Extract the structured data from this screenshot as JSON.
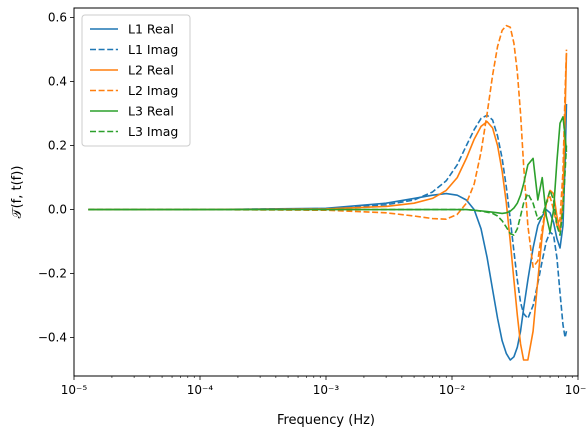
{
  "chart_data": {
    "type": "line",
    "title": "",
    "xlabel": "Frequency (Hz)",
    "ylabel": "𝒯(f, t(f))",
    "x_scale": "log",
    "xlim": [
      1e-05,
      0.1
    ],
    "ylim": [
      -0.52,
      0.63
    ],
    "grid": false,
    "legend_position": "top-left",
    "x_ticks": [
      {
        "value": 1e-05,
        "label": "10⁻⁵"
      },
      {
        "value": 0.0001,
        "label": "10⁻⁴"
      },
      {
        "value": 0.001,
        "label": "10⁻³"
      },
      {
        "value": 0.01,
        "label": "10⁻²"
      },
      {
        "value": 0.1,
        "label": "10⁻¹"
      }
    ],
    "y_ticks": [
      {
        "value": -0.4,
        "label": "−0.4"
      },
      {
        "value": -0.2,
        "label": "−0.2"
      },
      {
        "value": 0.0,
        "label": "0.0"
      },
      {
        "value": 0.2,
        "label": "0.2"
      },
      {
        "value": 0.4,
        "label": "0.4"
      },
      {
        "value": 0.6,
        "label": "0.6"
      }
    ],
    "series": [
      {
        "name": "L1 Real",
        "color": "#1f77b4",
        "dash": "solid",
        "x": [
          1.3e-05,
          0.0001,
          0.001,
          0.003,
          0.005,
          0.007,
          0.009,
          0.011,
          0.013,
          0.015,
          0.017,
          0.019,
          0.021,
          0.023,
          0.025,
          0.027,
          0.029,
          0.031,
          0.033,
          0.035,
          0.037,
          0.04,
          0.044,
          0.048,
          0.052,
          0.056,
          0.06,
          0.064,
          0.068,
          0.072,
          0.076,
          0.079,
          0.081
        ],
        "y": [
          0.0,
          0.0,
          0.004,
          0.02,
          0.035,
          0.045,
          0.05,
          0.045,
          0.03,
          0.0,
          -0.06,
          -0.15,
          -0.25,
          -0.34,
          -0.41,
          -0.45,
          -0.47,
          -0.46,
          -0.43,
          -0.38,
          -0.31,
          -0.22,
          -0.12,
          -0.05,
          -0.02,
          0.0,
          -0.01,
          -0.04,
          -0.09,
          -0.12,
          -0.05,
          0.15,
          0.33
        ]
      },
      {
        "name": "L1 Imag",
        "color": "#1f77b4",
        "dash": "dashed",
        "x": [
          1.3e-05,
          0.0001,
          0.001,
          0.003,
          0.005,
          0.007,
          0.009,
          0.011,
          0.013,
          0.015,
          0.017,
          0.019,
          0.021,
          0.023,
          0.025,
          0.027,
          0.029,
          0.031,
          0.033,
          0.035,
          0.037,
          0.04,
          0.044,
          0.048,
          0.052,
          0.056,
          0.06,
          0.064,
          0.068,
          0.072,
          0.076,
          0.079,
          0.081
        ],
        "y": [
          0.0,
          0.0,
          0.003,
          0.015,
          0.03,
          0.055,
          0.09,
          0.14,
          0.2,
          0.25,
          0.285,
          0.295,
          0.28,
          0.23,
          0.16,
          0.07,
          -0.03,
          -0.13,
          -0.22,
          -0.29,
          -0.325,
          -0.34,
          -0.3,
          -0.23,
          -0.16,
          -0.1,
          -0.07,
          -0.08,
          -0.15,
          -0.26,
          -0.36,
          -0.4,
          -0.38
        ]
      },
      {
        "name": "L2 Real",
        "color": "#ff7f0e",
        "dash": "solid",
        "x": [
          1.3e-05,
          0.0001,
          0.001,
          0.003,
          0.005,
          0.007,
          0.009,
          0.011,
          0.013,
          0.015,
          0.017,
          0.019,
          0.021,
          0.023,
          0.025,
          0.027,
          0.029,
          0.031,
          0.033,
          0.035,
          0.037,
          0.04,
          0.044,
          0.048,
          0.052,
          0.056,
          0.06,
          0.064,
          0.068,
          0.072,
          0.076,
          0.079,
          0.081
        ],
        "y": [
          0.0,
          0.0,
          0.002,
          0.01,
          0.02,
          0.035,
          0.06,
          0.1,
          0.16,
          0.22,
          0.26,
          0.275,
          0.255,
          0.2,
          0.12,
          0.02,
          -0.1,
          -0.22,
          -0.33,
          -0.42,
          -0.47,
          -0.47,
          -0.38,
          -0.22,
          -0.08,
          0.02,
          0.06,
          0.05,
          -0.02,
          -0.07,
          0.03,
          0.3,
          0.49
        ]
      },
      {
        "name": "L2 Imag",
        "color": "#ff7f0e",
        "dash": "dashed",
        "x": [
          1.3e-05,
          0.0001,
          0.001,
          0.003,
          0.005,
          0.007,
          0.009,
          0.011,
          0.013,
          0.015,
          0.017,
          0.019,
          0.021,
          0.023,
          0.025,
          0.027,
          0.029,
          0.031,
          0.033,
          0.035,
          0.037,
          0.04,
          0.044,
          0.048,
          0.052,
          0.056,
          0.06,
          0.064,
          0.068,
          0.072,
          0.076,
          0.079,
          0.081
        ],
        "y": [
          0.0,
          0.0,
          -0.002,
          -0.01,
          -0.02,
          -0.028,
          -0.03,
          -0.015,
          0.02,
          0.08,
          0.18,
          0.3,
          0.42,
          0.51,
          0.56,
          0.575,
          0.57,
          0.52,
          0.43,
          0.3,
          0.14,
          -0.05,
          -0.18,
          -0.16,
          -0.06,
          0.02,
          0.04,
          0.0,
          -0.05,
          -0.03,
          0.12,
          0.37,
          0.5
        ]
      },
      {
        "name": "L3 Real",
        "color": "#2ca02c",
        "dash": "solid",
        "x": [
          1.3e-05,
          0.0001,
          0.001,
          0.003,
          0.005,
          0.007,
          0.009,
          0.011,
          0.013,
          0.015,
          0.017,
          0.019,
          0.021,
          0.023,
          0.025,
          0.027,
          0.029,
          0.031,
          0.033,
          0.035,
          0.037,
          0.04,
          0.044,
          0.048,
          0.052,
          0.056,
          0.06,
          0.064,
          0.068,
          0.072,
          0.076,
          0.079,
          0.081
        ],
        "y": [
          0.0,
          0.0,
          0.0,
          0.0,
          0.0,
          0.0,
          0.0,
          0.0,
          0.0,
          -0.002,
          -0.004,
          -0.006,
          -0.008,
          -0.01,
          -0.012,
          -0.01,
          -0.005,
          0.005,
          0.02,
          0.045,
          0.08,
          0.14,
          0.16,
          0.03,
          0.1,
          -0.02,
          -0.07,
          0.0,
          0.15,
          0.27,
          0.29,
          0.23,
          0.18
        ]
      },
      {
        "name": "L3 Imag",
        "color": "#2ca02c",
        "dash": "dashed",
        "x": [
          1.3e-05,
          0.0001,
          0.001,
          0.003,
          0.005,
          0.007,
          0.009,
          0.011,
          0.013,
          0.015,
          0.017,
          0.019,
          0.021,
          0.023,
          0.025,
          0.027,
          0.029,
          0.031,
          0.033,
          0.035,
          0.037,
          0.04,
          0.044,
          0.048,
          0.052,
          0.056,
          0.06,
          0.064,
          0.068,
          0.072,
          0.076,
          0.079,
          0.081
        ],
        "y": [
          0.0,
          0.0,
          0.0,
          0.0,
          0.0,
          0.0,
          0.0,
          0.0,
          0.0,
          -0.002,
          -0.005,
          -0.008,
          -0.012,
          -0.02,
          -0.035,
          -0.055,
          -0.075,
          -0.08,
          -0.06,
          -0.02,
          0.02,
          0.05,
          0.02,
          -0.03,
          -0.02,
          0.02,
          0.06,
          0.03,
          -0.05,
          -0.08,
          0.0,
          0.12,
          0.2
        ]
      }
    ]
  }
}
